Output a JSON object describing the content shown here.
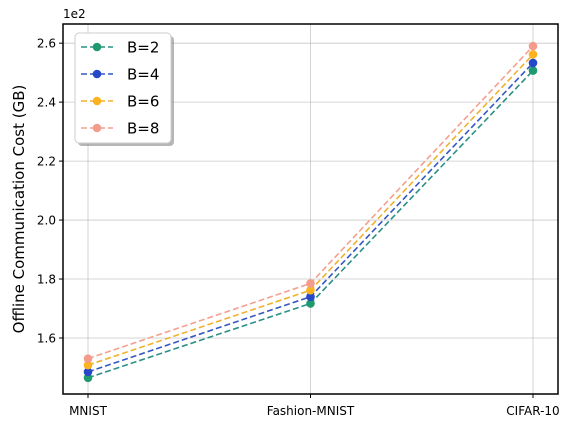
{
  "chart_data": {
    "type": "line",
    "categories": [
      "MNIST",
      "Fashion-MNIST",
      "CIFAR-10"
    ],
    "ylabel": "Offline Communication Cost (GB)",
    "y_scale_label": "1e2",
    "ylim": [
      1.41,
      2.665
    ],
    "yticks": [
      1.6,
      1.8,
      2.0,
      2.2,
      2.4,
      2.6
    ],
    "ytick_labels": [
      "1.6",
      "1.8",
      "2.0",
      "2.2",
      "2.4",
      "2.6"
    ],
    "grid": true,
    "legend_position": "top-left",
    "series": [
      {
        "name": "B=2",
        "color": "#2a9086",
        "marker_color": "#1f9a6e",
        "values": [
          1.465,
          1.717,
          2.507
        ]
      },
      {
        "name": "B=4",
        "color": "#3557c4",
        "marker_color": "#2547c8",
        "values": [
          1.485,
          1.74,
          2.533
        ]
      },
      {
        "name": "B=6",
        "color": "#f0b12e",
        "marker_color": "#fbb41f",
        "values": [
          1.508,
          1.762,
          2.562
        ]
      },
      {
        "name": "B=8",
        "color": "#f3a090",
        "marker_color": "#f49c8c",
        "values": [
          1.53,
          1.785,
          2.59
        ]
      }
    ]
  }
}
